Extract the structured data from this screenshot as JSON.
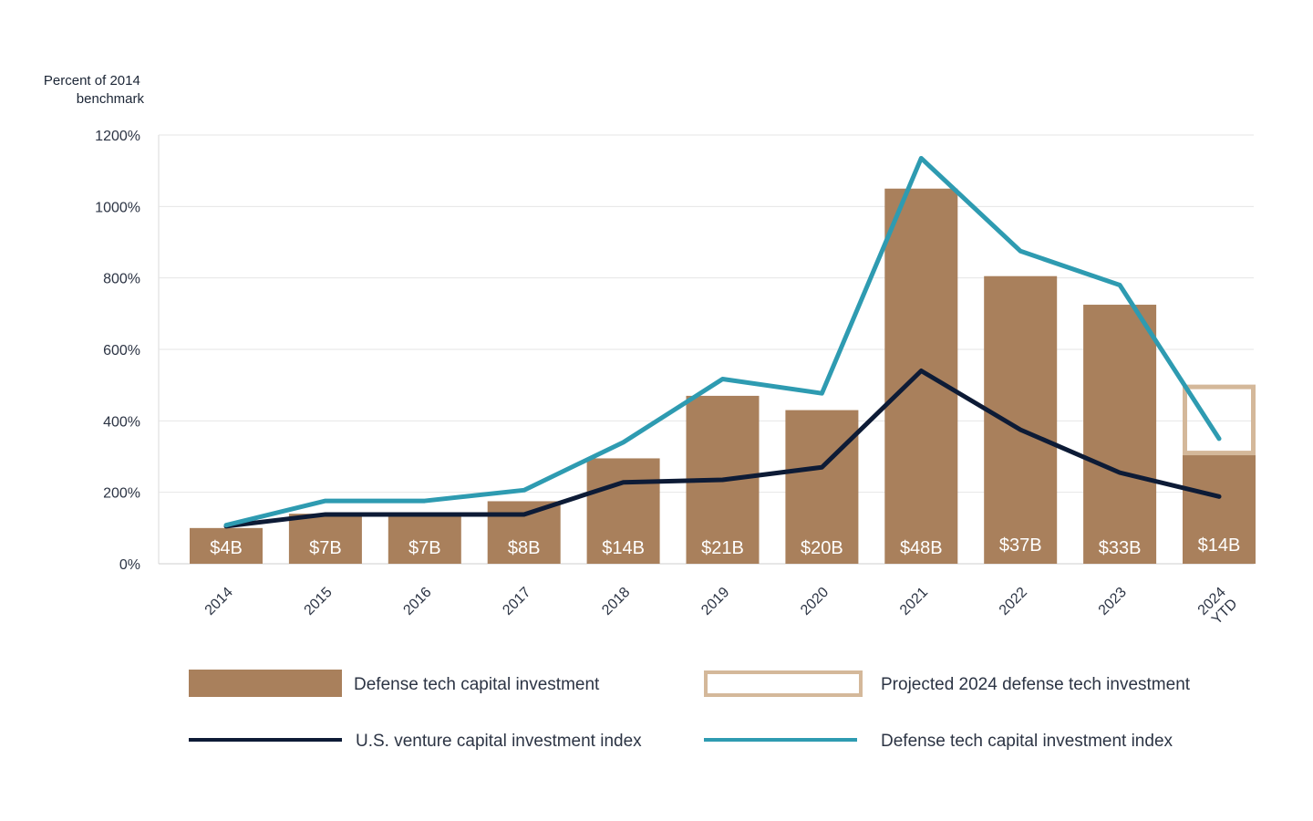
{
  "chart_data": {
    "type": "bar",
    "ylabel": [
      "Percent of 2014",
      "benchmark"
    ],
    "ylim": [
      0,
      1200
    ],
    "yticks": [
      0,
      200,
      400,
      600,
      800,
      1000,
      1200
    ],
    "ytick_labels": [
      "0%",
      "200%",
      "400%",
      "600%",
      "800%",
      "1000%",
      "1200%"
    ],
    "categories": [
      [
        "2014"
      ],
      [
        "2015"
      ],
      [
        "2016"
      ],
      [
        "2017"
      ],
      [
        "2018"
      ],
      [
        "2019"
      ],
      [
        "2020"
      ],
      [
        "2021"
      ],
      [
        "2022"
      ],
      [
        "2023"
      ],
      [
        "2024",
        "YTD"
      ]
    ],
    "grid": true,
    "series": [
      {
        "name": "Defense tech capital investment",
        "kind": "bar",
        "color": "#a9805c",
        "values": [
          100,
          140,
          140,
          175,
          295,
          470,
          430,
          1050,
          805,
          725,
          310
        ],
        "labels": [
          "$4B",
          "$7B",
          "$7B",
          "$8B",
          "$14B",
          "$21B",
          "$20B",
          "$48B",
          "$37B",
          "$33B",
          "$14B"
        ]
      },
      {
        "name": "Projected 2024 defense tech investment",
        "kind": "projected-bar",
        "color": "#d4b89a",
        "category_index": 10,
        "value": 495
      },
      {
        "name": "U.S. venture capital investment index",
        "kind": "line",
        "color": "#0d1b36",
        "values": [
          105,
          138,
          138,
          138,
          228,
          235,
          270,
          540,
          375,
          255,
          188
        ]
      },
      {
        "name": "Defense tech capital investment index",
        "kind": "line",
        "color": "#2e9bb1",
        "values": [
          108,
          176,
          176,
          206,
          340,
          517,
          477,
          1135,
          875,
          780,
          350
        ]
      }
    ],
    "legend": {
      "position": "bottom",
      "items": [
        {
          "label": "Defense tech capital investment",
          "kind": "bar-swatch",
          "series_index": 0
        },
        {
          "label": "Projected 2024 defense tech investment",
          "kind": "outline-swatch",
          "series_index": 1
        },
        {
          "label": "U.S. venture capital investment index",
          "kind": "line-swatch",
          "series_index": 2
        },
        {
          "label": "Defense tech capital investment index",
          "kind": "line-swatch",
          "series_index": 3
        }
      ]
    }
  }
}
